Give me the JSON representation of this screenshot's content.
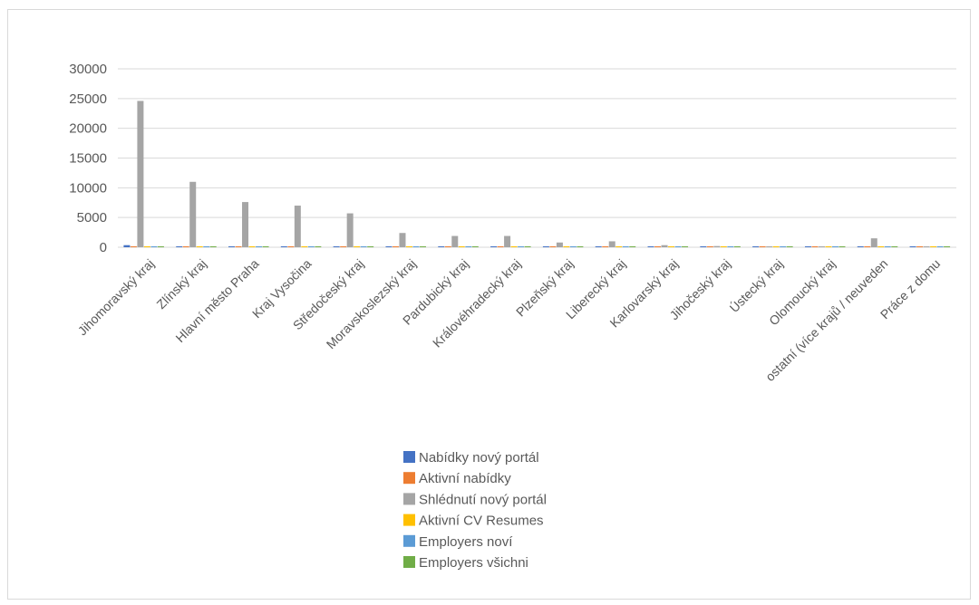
{
  "chart_data": {
    "type": "bar",
    "title": "",
    "xlabel": "",
    "ylabel": "",
    "ylim": [
      0,
      30000
    ],
    "yticks": [
      0,
      5000,
      10000,
      15000,
      20000,
      25000,
      30000
    ],
    "grid": true,
    "legend_position": "bottom",
    "categories": [
      "Jihomoravský kraj",
      "Zlínský kraj",
      "Hlavní město Praha",
      "Kraj Vysočina",
      "Středočeský kraj",
      "Moravskoslezský kraj",
      "Pardubický kraj",
      "Královéhradecký kraj",
      "Plzeňský kraj",
      "Liberecký kraj",
      "Karlovarský kraj",
      "Jihočeský kraj",
      "Ústecký kraj",
      "Olomoucký kraj",
      "ostatní (více krajů / neuveden",
      "Práce z domu"
    ],
    "series": [
      {
        "name": "Nabídky nový portál",
        "color": "#4472c4",
        "values": [
          350,
          150,
          80,
          90,
          70,
          40,
          30,
          30,
          20,
          20,
          10,
          10,
          10,
          10,
          30,
          10
        ]
      },
      {
        "name": "Aktivní nabídky",
        "color": "#ed7d31",
        "values": [
          100,
          50,
          40,
          30,
          30,
          20,
          10,
          10,
          10,
          10,
          10,
          10,
          10,
          10,
          20,
          10
        ]
      },
      {
        "name": "Shlédnutí nový portál",
        "color": "#a5a5a5",
        "values": [
          24600,
          11000,
          7600,
          7000,
          5700,
          2400,
          1900,
          1900,
          800,
          1000,
          350,
          200,
          150,
          50,
          1500,
          100
        ]
      },
      {
        "name": "Aktivní CV Resumes",
        "color": "#ffc000",
        "values": [
          50,
          20,
          100,
          30,
          20,
          10,
          10,
          10,
          10,
          10,
          10,
          10,
          10,
          10,
          50,
          10
        ]
      },
      {
        "name": "Employers noví",
        "color": "#5b9bd5",
        "values": [
          60,
          30,
          40,
          30,
          20,
          10,
          10,
          10,
          10,
          10,
          10,
          10,
          10,
          10,
          80,
          10
        ]
      },
      {
        "name": "Employers všichni",
        "color": "#70ad47",
        "values": [
          50,
          20,
          30,
          20,
          20,
          10,
          10,
          10,
          10,
          10,
          10,
          10,
          10,
          10,
          20,
          10
        ]
      }
    ]
  }
}
